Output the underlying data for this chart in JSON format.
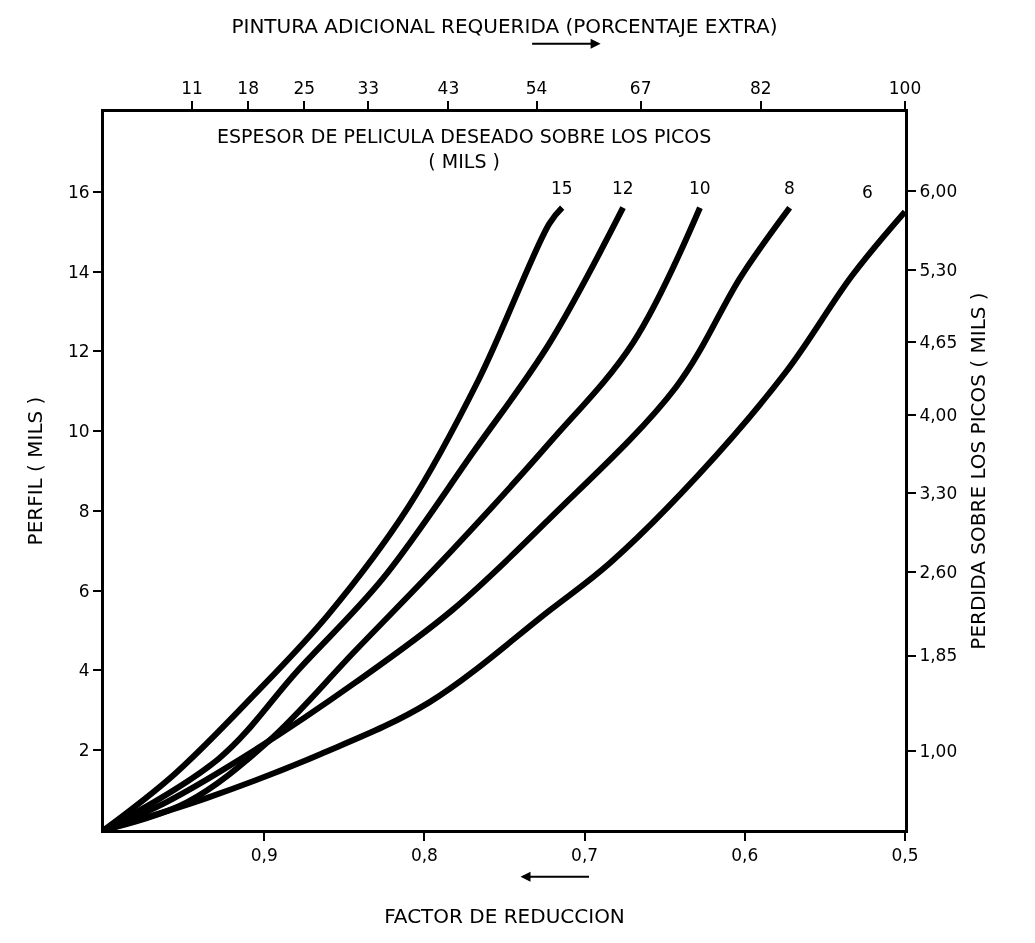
{
  "chart_data": {
    "type": "line",
    "x2label": "PINTURA ADICIONAL REQUERIDA (PORCENTAJE EXTRA)",
    "xlabel": "FACTOR DE REDUCCION",
    "ylabel": "PERFIL ( MILS )",
    "y2label": "PERDIDA SOBRE LOS PICOS ( MILS )",
    "legend_title": "ESPESOR DE PELICULA DESEADO SOBRE LOS PICOS\n( MILS )",
    "xlim": [
      1.0,
      0.5
    ],
    "xticks": [
      {
        "value": 0.9,
        "label": "0,9"
      },
      {
        "value": 0.8,
        "label": "0,8"
      },
      {
        "value": 0.7,
        "label": "0,7"
      },
      {
        "value": 0.6,
        "label": "0,6"
      },
      {
        "value": 0.5,
        "label": "0,5"
      }
    ],
    "x2lim": [
      0,
      100
    ],
    "x2ticks": [
      11,
      18,
      25,
      33,
      43,
      54,
      67,
      82,
      100
    ],
    "ylim": [
      0,
      18
    ],
    "yticks": [
      2,
      4,
      6,
      8,
      10,
      12,
      14,
      16
    ],
    "y2lim": [
      0.29,
      6.71
    ],
    "y2ticks": [
      {
        "value": 1.0,
        "label": "1,00"
      },
      {
        "value": 1.85,
        "label": "1,85"
      },
      {
        "value": 2.6,
        "label": "2,60"
      },
      {
        "value": 3.3,
        "label": "3,30"
      },
      {
        "value": 4.0,
        "label": "4,00"
      },
      {
        "value": 4.65,
        "label": "4,65"
      },
      {
        "value": 5.3,
        "label": "5,30"
      },
      {
        "value": 6.0,
        "label": "6,00"
      }
    ],
    "grid": false,
    "legend": false,
    "marker": "none",
    "line_style": "solid",
    "series": [
      {
        "name": "15",
        "color": "#000000",
        "x": [
          1.0,
          0.956,
          0.906,
          0.86,
          0.81,
          0.766,
          0.722,
          0.714
        ],
        "values": [
          0,
          1.4,
          3.4,
          5.4,
          8.1,
          11.3,
          15.2,
          15.6
        ]
      },
      {
        "name": "12",
        "color": "#000000",
        "x": [
          1.0,
          0.928,
          0.879,
          0.826,
          0.769,
          0.722,
          0.676
        ],
        "values": [
          0,
          1.8,
          4.0,
          6.3,
          9.5,
          12.2,
          15.6
        ]
      },
      {
        "name": "10",
        "color": "#000000",
        "x": [
          1.0,
          0.948,
          0.898,
          0.843,
          0.783,
          0.722,
          0.67,
          0.628
        ],
        "values": [
          0,
          0.7,
          2.2,
          4.5,
          7.0,
          9.7,
          12.2,
          15.6
        ]
      },
      {
        "name": "8",
        "color": "#000000",
        "x": [
          1.0,
          0.961,
          0.906,
          0.843,
          0.783,
          0.722,
          0.643,
          0.602,
          0.572
        ],
        "values": [
          0,
          0.7,
          2.0,
          3.7,
          5.5,
          7.8,
          11.1,
          13.9,
          15.6
        ]
      },
      {
        "name": "6",
        "color": "#000000",
        "x": [
          1.0,
          0.936,
          0.865,
          0.797,
          0.722,
          0.684,
          0.629,
          0.574,
          0.533,
          0.5
        ],
        "values": [
          0,
          0.8,
          1.9,
          3.2,
          5.5,
          6.7,
          8.9,
          11.5,
          13.9,
          15.5
        ]
      }
    ]
  }
}
